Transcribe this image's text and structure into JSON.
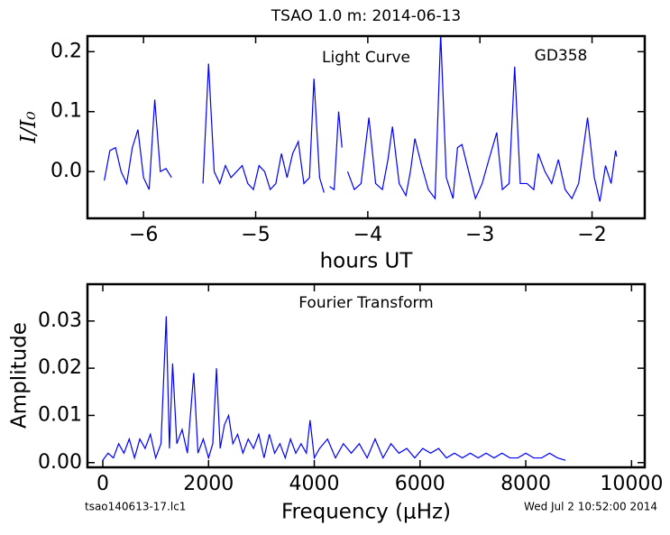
{
  "title": "TSAO 1.0 m:  2014-06-13",
  "footer_left": "tsao140613-17.lc1",
  "footer_right": "Wed Jul  2 10:52:00 2014",
  "chart_data": [
    {
      "type": "line",
      "annotations": [
        "Light Curve",
        "GD358"
      ],
      "xlabel": "hours UT",
      "ylabel": "I/I₀",
      "color": "#0000ff",
      "x": [
        -6.35,
        -6.3,
        -6.25,
        -6.2,
        -6.15,
        -6.1,
        -6.05,
        -6.0,
        -5.95,
        -5.9,
        -5.85,
        -5.8,
        -5.75,
        -5.6,
        -5.47,
        -5.42,
        -5.37,
        -5.32,
        -5.27,
        -5.22,
        -5.17,
        -5.12,
        -5.07,
        -5.02,
        -4.97,
        -4.92,
        -4.87,
        -4.82,
        -4.77,
        -4.72,
        -4.67,
        -4.62,
        -4.57,
        -4.52,
        -4.48,
        -4.43,
        -4.39,
        -4.36,
        -4.34,
        -4.3,
        -4.26,
        -4.23,
        -4.2,
        -4.18,
        -4.12,
        -4.06,
        -3.99,
        -3.93,
        -3.87,
        -3.82,
        -3.78,
        -3.72,
        -3.66,
        -3.62,
        -3.58,
        -3.52,
        -3.46,
        -3.4,
        -3.35,
        -3.3,
        -3.24,
        -3.2,
        -3.16,
        -3.1,
        -3.04,
        -2.98,
        -2.92,
        -2.85,
        -2.8,
        -2.74,
        -2.69,
        -2.64,
        -2.58,
        -2.52,
        -2.48,
        -2.42,
        -2.36,
        -2.3,
        -2.24,
        -2.18,
        -2.12,
        -2.04,
        -1.98,
        -1.93,
        -1.88,
        -1.83,
        -1.79,
        -1.78
      ],
      "values": [
        -0.015,
        0.035,
        0.04,
        0.0,
        -0.02,
        0.04,
        0.07,
        -0.01,
        -0.03,
        0.12,
        0.0,
        0.005,
        -0.01,
        null,
        -0.02,
        0.18,
        0.0,
        -0.02,
        0.01,
        -0.01,
        0.0,
        0.01,
        -0.02,
        -0.03,
        0.01,
        0.0,
        -0.03,
        -0.02,
        0.03,
        -0.01,
        0.03,
        0.05,
        -0.02,
        -0.01,
        0.155,
        -0.01,
        -0.035,
        null,
        -0.025,
        -0.03,
        0.1,
        0.04,
        null,
        0.0,
        -0.03,
        -0.02,
        0.09,
        -0.02,
        -0.03,
        0.02,
        0.075,
        -0.02,
        -0.04,
        0.0,
        0.055,
        0.01,
        -0.03,
        -0.045,
        0.23,
        -0.01,
        -0.045,
        0.04,
        0.045,
        0.0,
        -0.045,
        -0.02,
        0.02,
        0.065,
        -0.03,
        -0.02,
        0.175,
        -0.02,
        -0.02,
        -0.03,
        0.03,
        0.0,
        -0.02,
        0.02,
        -0.03,
        -0.045,
        -0.02,
        0.09,
        -0.01,
        -0.05,
        0.01,
        -0.02,
        0.035,
        0.025
      ],
      "xlim": [
        -6.5,
        -1.53
      ],
      "ylim": [
        -0.078,
        0.226
      ],
      "xticks": [
        {
          "value": -6,
          "label": "−6"
        },
        {
          "value": -5,
          "label": "−5"
        },
        {
          "value": -4,
          "label": "−4"
        },
        {
          "value": -3,
          "label": "−3"
        },
        {
          "value": -2,
          "label": "−2"
        }
      ],
      "yticks": [
        {
          "value": 0,
          "label": "0.0"
        },
        0.1,
        0.2
      ]
    },
    {
      "type": "line",
      "annotations": [
        "Fourier Transform"
      ],
      "xlabel": "Frequency (μHz)",
      "ylabel": "Amplitude",
      "color": "#0000ff",
      "x": [
        0,
        100,
        200,
        300,
        400,
        500,
        600,
        700,
        800,
        900,
        1000,
        1100,
        1200,
        1260,
        1320,
        1400,
        1500,
        1600,
        1720,
        1800,
        1900,
        2000,
        2080,
        2150,
        2220,
        2300,
        2380,
        2460,
        2550,
        2650,
        2750,
        2850,
        2950,
        3050,
        3150,
        3250,
        3350,
        3450,
        3550,
        3650,
        3750,
        3850,
        3920,
        4000,
        4100,
        4250,
        4400,
        4550,
        4700,
        4850,
        5000,
        5150,
        5300,
        5450,
        5600,
        5750,
        5900,
        6050,
        6200,
        6350,
        6500,
        6650,
        6800,
        6950,
        7100,
        7250,
        7400,
        7550,
        7700,
        7850,
        8000,
        8150,
        8300,
        8450,
        8600,
        8750
      ],
      "values": [
        0.0005,
        0.002,
        0.001,
        0.004,
        0.002,
        0.005,
        0.001,
        0.005,
        0.003,
        0.006,
        0.001,
        0.004,
        0.031,
        0.003,
        0.021,
        0.004,
        0.007,
        0.002,
        0.019,
        0.002,
        0.005,
        0.001,
        0.004,
        0.02,
        0.003,
        0.008,
        0.01,
        0.004,
        0.006,
        0.002,
        0.005,
        0.003,
        0.006,
        0.001,
        0.006,
        0.002,
        0.004,
        0.001,
        0.005,
        0.002,
        0.004,
        0.002,
        0.009,
        0.001,
        0.003,
        0.005,
        0.001,
        0.004,
        0.002,
        0.004,
        0.001,
        0.005,
        0.001,
        0.004,
        0.002,
        0.003,
        0.001,
        0.003,
        0.002,
        0.003,
        0.001,
        0.002,
        0.001,
        0.002,
        0.001,
        0.002,
        0.001,
        0.002,
        0.001,
        0.001,
        0.002,
        0.001,
        0.001,
        0.002,
        0.001,
        0.0005
      ],
      "xlim": [
        -290,
        10250
      ],
      "ylim": [
        -0.001,
        0.0378
      ],
      "xticks": [
        0,
        2000,
        4000,
        6000,
        8000,
        10000
      ],
      "yticks": [
        {
          "value": 0,
          "label": "0.00"
        },
        {
          "value": 0.01,
          "label": "0.01"
        },
        {
          "value": 0.02,
          "label": "0.02"
        },
        {
          "value": 0.03,
          "label": "0.03"
        }
      ]
    }
  ]
}
